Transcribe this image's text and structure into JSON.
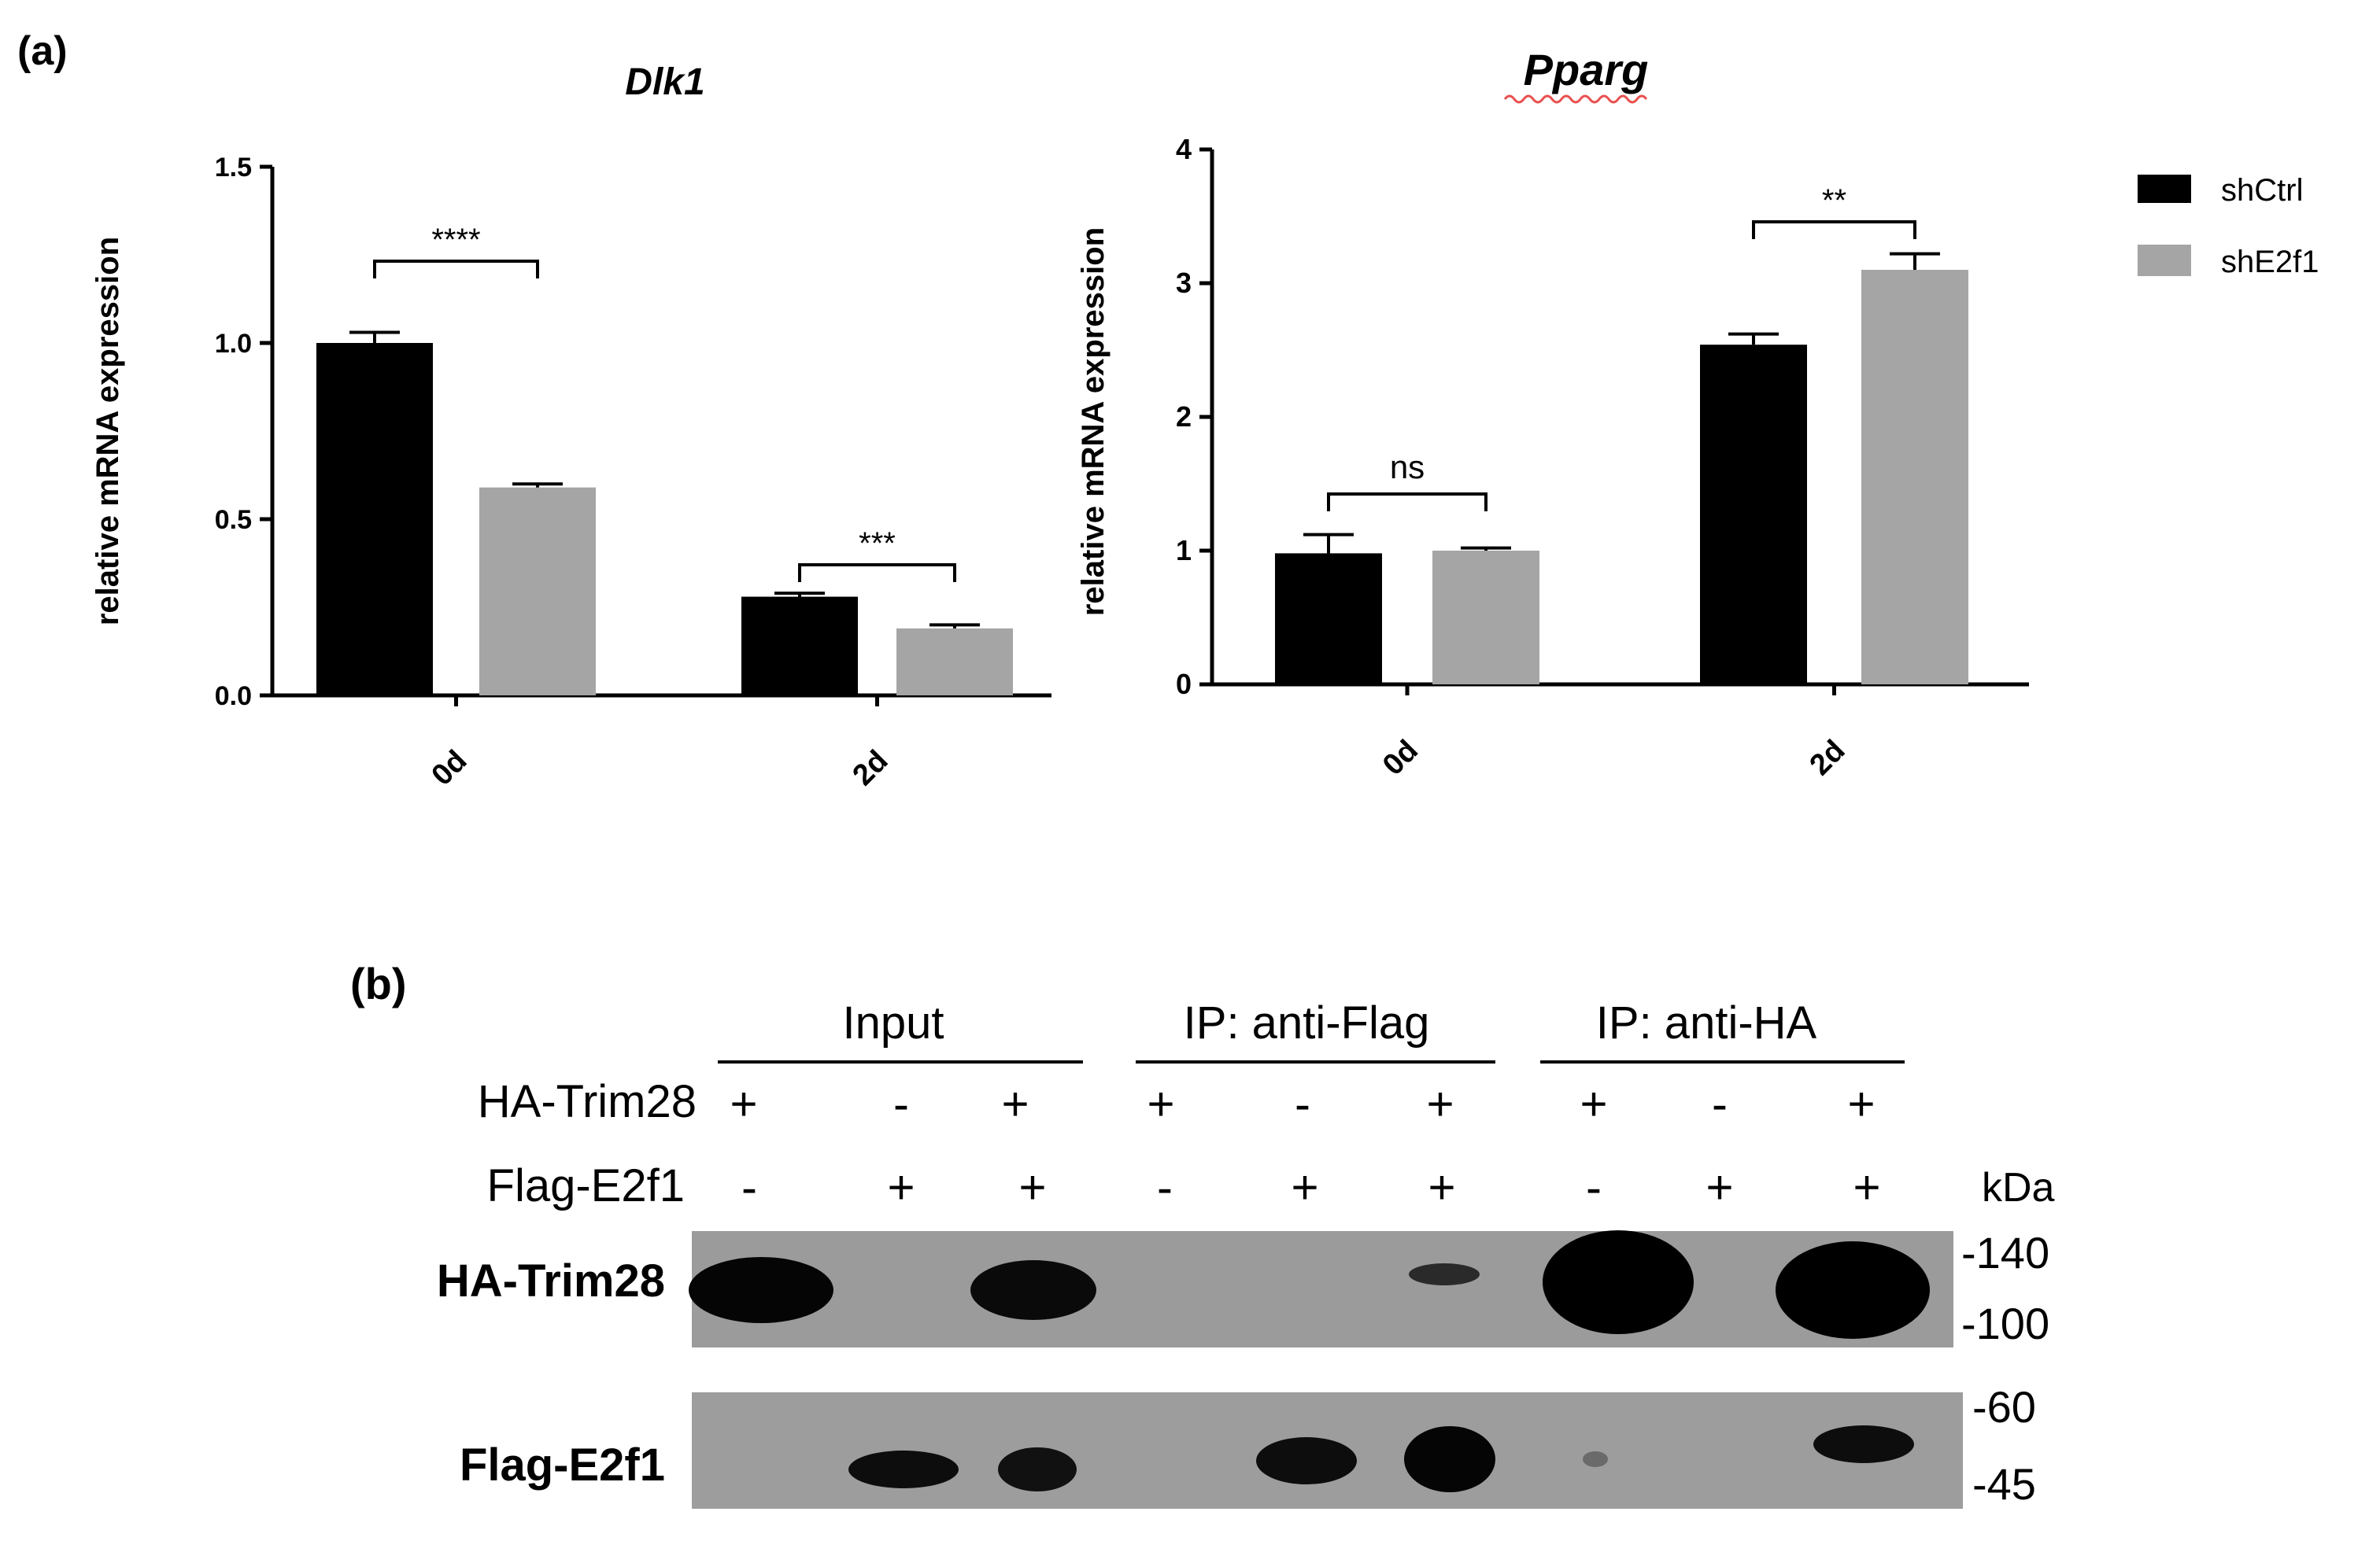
{
  "panel_a": {
    "label": "(a)"
  },
  "panel_b": {
    "label": "(b)",
    "groups": [
      "Input",
      "IP: anti-Flag",
      "IP: anti-HA"
    ],
    "row_labels": [
      "HA-Trim28",
      "Flag-E2f1"
    ],
    "ha_trim28_signs": [
      "+",
      "-",
      "+",
      "+",
      "-",
      "+",
      "+",
      "-",
      "+"
    ],
    "flag_e2f1_signs": [
      "-",
      "+",
      "+",
      "-",
      "+",
      "+",
      "-",
      "+",
      "+"
    ],
    "kda_label": "kDa",
    "blot_labels": [
      "HA-Trim28",
      "Flag-E2f1"
    ],
    "mw_markers_top": [
      "-140",
      "-100"
    ],
    "mw_markers_bottom": [
      "-60",
      "-45"
    ]
  },
  "colors": {
    "shCtrl": "#000000",
    "shE2f1": "#a5a5a5"
  },
  "chart_data": [
    {
      "type": "bar",
      "title": "Dlk1",
      "xlabel": "",
      "ylabel": "relative mRNA expression",
      "categories": [
        "0d",
        "2d"
      ],
      "ylim": [
        0,
        1.5
      ],
      "yticks": [
        "0.0",
        "0.5",
        "1.0",
        "1.5"
      ],
      "series": [
        {
          "name": "shCtrl",
          "values": [
            1.0,
            0.28
          ],
          "errors": [
            0.03,
            0.01
          ]
        },
        {
          "name": "shE2f1",
          "values": [
            0.59,
            0.19
          ],
          "errors": [
            0.01,
            0.01
          ]
        }
      ],
      "significance": [
        "****",
        "***"
      ],
      "grid": false
    },
    {
      "type": "bar",
      "title": "Pparg",
      "xlabel": "",
      "ylabel": "relative mRNA expression",
      "categories": [
        "0d",
        "2d"
      ],
      "ylim": [
        0,
        4
      ],
      "yticks": [
        "0",
        "1",
        "2",
        "3",
        "4"
      ],
      "series": [
        {
          "name": "shCtrl",
          "values": [
            0.98,
            2.54
          ],
          "errors": [
            0.14,
            0.08
          ]
        },
        {
          "name": "shE2f1",
          "values": [
            1.0,
            3.1
          ],
          "errors": [
            0.02,
            0.12
          ]
        }
      ],
      "significance": [
        "ns",
        "**"
      ],
      "legend": {
        "position": "top-right",
        "entries": [
          "shCtrl",
          "shE2f1"
        ]
      },
      "grid": false
    }
  ]
}
